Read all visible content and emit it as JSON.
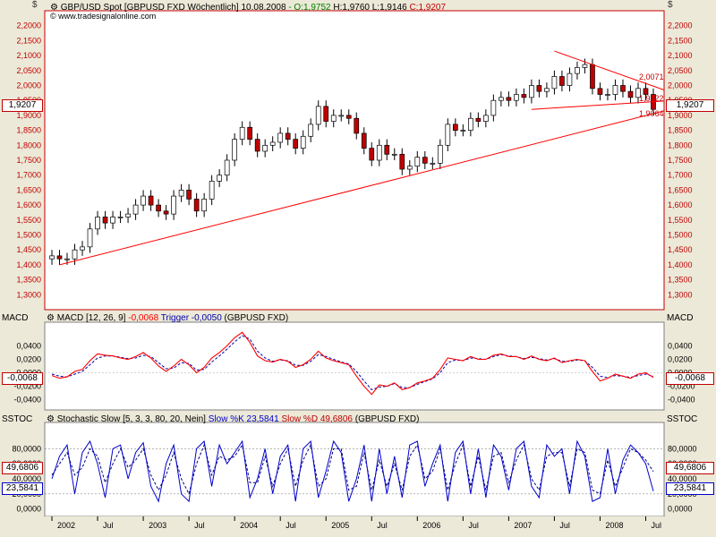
{
  "header": {
    "price_title": "GBP/USD Spot [GBPUSD FXD  Wöchentlich] 10.08.2008",
    "ohlc": {
      "open": "- O:1,9752",
      "high": "H:1,9760",
      "low": "L:1,9146",
      "close": "C:1,9207"
    },
    "watermark": "www.tradesignalonline.com",
    "dollar_left": "$",
    "dollar_right": "$"
  },
  "panes": {
    "macd": {
      "short_label": "MACD",
      "title_prefix": "MACD [12, 26, 9]",
      "value": "-0,0068",
      "trigger": "Trigger -0,0050",
      "symbol": "(GBPUSD FXD)",
      "last_box": "-0,0068"
    },
    "stoch": {
      "short_label": "SSTOC",
      "title_prefix": "Stochastic Slow [5, 3, 3, 80, 20, Nein]",
      "k": "Slow %K 23,5841",
      "d": "Slow %D 49,6806",
      "symbol": "(GBPUSD FXD)",
      "box_d": "49,6806",
      "box_k": "23,5841"
    }
  },
  "price_box": "1,9207",
  "colors": {
    "price_up": "#ffffff",
    "price_down": "#c00000",
    "macd_line": "#ff0000",
    "macd_signal": "#0000aa",
    "stoch_k": "#0000cc",
    "trendline": "#ff0000",
    "axis_red": "#c00000",
    "axis_green": "#008000"
  },
  "chart_data": [
    {
      "type": "candlestick",
      "title": "GBP/USD Spot [GBPUSD FXD Wöchentlich] 10.08.2008",
      "x_ticks": [
        "2002",
        "Jul",
        "2003",
        "Jul",
        "2004",
        "Jul",
        "2005",
        "Jul",
        "2006",
        "Jul",
        "2007",
        "Jul",
        "2008",
        "Jul"
      ],
      "x_range": [
        "2002-01",
        "2008-08"
      ],
      "ylim": [
        1.25,
        2.25
      ],
      "y_ticks": [
        "1,3000",
        "1,3500",
        "1,4000",
        "1,4500",
        "1,5000",
        "1,5500",
        "1,6000",
        "1,6500",
        "1,7000",
        "1,7500",
        "1,8000",
        "1,8500",
        "1,9000",
        "1,9500",
        "2,0000",
        "2,0500",
        "2,1000",
        "2,1500",
        "2,2000"
      ],
      "series": [
        {
          "x": [
            "2002-01",
            "2002-02",
            "2002-03",
            "2002-04",
            "2002-05",
            "2002-06",
            "2002-07",
            "2002-08",
            "2002-09",
            "2002-10",
            "2002-11",
            "2002-12",
            "2003-01",
            "2003-02",
            "2003-03",
            "2003-04",
            "2003-05",
            "2003-06",
            "2003-07",
            "2003-08",
            "2003-09",
            "2003-10",
            "2003-11",
            "2003-12",
            "2004-01",
            "2004-02",
            "2004-03",
            "2004-04",
            "2004-05",
            "2004-06",
            "2004-07",
            "2004-08",
            "2004-09",
            "2004-10",
            "2004-11",
            "2004-12",
            "2005-01",
            "2005-02",
            "2005-03",
            "2005-04",
            "2005-05",
            "2005-06",
            "2005-07",
            "2005-08",
            "2005-09",
            "2005-10",
            "2005-11",
            "2005-12",
            "2006-01",
            "2006-02",
            "2006-03",
            "2006-04",
            "2006-05",
            "2006-06",
            "2006-07",
            "2006-08",
            "2006-09",
            "2006-10",
            "2006-11",
            "2006-12",
            "2007-01",
            "2007-02",
            "2007-03",
            "2007-04",
            "2007-05",
            "2007-06",
            "2007-07",
            "2007-08",
            "2007-09",
            "2007-10",
            "2007-11",
            "2007-12",
            "2008-01",
            "2008-02",
            "2008-03",
            "2008-04",
            "2008-05",
            "2008-06",
            "2008-07",
            "2008-08"
          ],
          "close": [
            1.43,
            1.42,
            1.42,
            1.45,
            1.46,
            1.52,
            1.56,
            1.54,
            1.56,
            1.56,
            1.57,
            1.6,
            1.63,
            1.6,
            1.58,
            1.57,
            1.63,
            1.65,
            1.62,
            1.58,
            1.62,
            1.68,
            1.7,
            1.75,
            1.82,
            1.86,
            1.82,
            1.78,
            1.8,
            1.81,
            1.84,
            1.82,
            1.79,
            1.83,
            1.87,
            1.93,
            1.88,
            1.9,
            1.9,
            1.89,
            1.84,
            1.79,
            1.75,
            1.8,
            1.77,
            1.77,
            1.72,
            1.73,
            1.76,
            1.74,
            1.74,
            1.8,
            1.87,
            1.85,
            1.85,
            1.89,
            1.88,
            1.9,
            1.95,
            1.96,
            1.95,
            1.97,
            1.96,
            2.0,
            1.98,
            1.99,
            2.03,
            2.0,
            2.04,
            2.06,
            2.07,
            1.99,
            1.97,
            1.97,
            2.0,
            1.98,
            1.96,
            1.99,
            1.97,
            1.92
          ]
        }
      ],
      "annotations": [
        "2,0071",
        "1,9422",
        "1,9064"
      ]
    },
    {
      "type": "line",
      "title": "MACD [12, 26, 9] -0,0068 Trigger -0,0050 (GBPUSD FXD)",
      "ylim": [
        -0.055,
        0.075
      ],
      "y_ticks": [
        "-0,0400",
        "-0,0200",
        "0,0000",
        "0,0200",
        "0,0400"
      ],
      "series": [
        {
          "name": "MACD",
          "values": [
            -0.004,
            -0.008,
            -0.006,
            0.002,
            0.005,
            0.018,
            0.028,
            0.026,
            0.025,
            0.022,
            0.02,
            0.024,
            0.03,
            0.022,
            0.01,
            0.002,
            0.01,
            0.02,
            0.012,
            0.0,
            0.008,
            0.022,
            0.03,
            0.04,
            0.052,
            0.06,
            0.045,
            0.025,
            0.018,
            0.016,
            0.02,
            0.017,
            0.008,
            0.012,
            0.02,
            0.032,
            0.022,
            0.018,
            0.015,
            0.012,
            -0.005,
            -0.02,
            -0.032,
            -0.018,
            -0.02,
            -0.015,
            -0.025,
            -0.022,
            -0.015,
            -0.012,
            -0.008,
            0.005,
            0.022,
            0.02,
            0.018,
            0.024,
            0.02,
            0.02,
            0.026,
            0.028,
            0.024,
            0.024,
            0.02,
            0.025,
            0.02,
            0.018,
            0.022,
            0.015,
            0.018,
            0.02,
            0.018,
            0.002,
            -0.012,
            -0.008,
            -0.002,
            -0.005,
            -0.008,
            -0.002,
            0.0,
            -0.0068
          ]
        },
        {
          "name": "Trigger",
          "values": [
            -0.002,
            -0.005,
            -0.006,
            -0.002,
            0.002,
            0.012,
            0.022,
            0.025,
            0.025,
            0.023,
            0.021,
            0.022,
            0.026,
            0.024,
            0.015,
            0.006,
            0.007,
            0.015,
            0.014,
            0.004,
            0.005,
            0.016,
            0.025,
            0.035,
            0.046,
            0.055,
            0.05,
            0.032,
            0.022,
            0.017,
            0.019,
            0.018,
            0.011,
            0.011,
            0.017,
            0.027,
            0.024,
            0.02,
            0.016,
            0.013,
            0.002,
            -0.012,
            -0.025,
            -0.021,
            -0.02,
            -0.016,
            -0.022,
            -0.022,
            -0.017,
            -0.013,
            -0.009,
            0.0,
            0.015,
            0.019,
            0.018,
            0.022,
            0.021,
            0.02,
            0.024,
            0.027,
            0.025,
            0.024,
            0.021,
            0.023,
            0.021,
            0.019,
            0.021,
            0.017,
            0.017,
            0.019,
            0.018,
            0.008,
            -0.005,
            -0.007,
            -0.004,
            -0.005,
            -0.007,
            -0.004,
            -0.002,
            -0.005
          ]
        }
      ]
    },
    {
      "type": "line",
      "title": "Stochastic Slow [5, 3, 3, 80, 20, Nein] Slow %K 23,5841 Slow %D 49,6806 (GBPUSD FXD)",
      "ylim": [
        -10,
        115
      ],
      "y_ticks": [
        "0,0000",
        "20,0000",
        "40,0000",
        "60,0000",
        "80,0000"
      ],
      "series": [
        {
          "name": "Slow %K",
          "values": [
            40,
            70,
            85,
            20,
            75,
            90,
            60,
            15,
            80,
            85,
            40,
            75,
            88,
            30,
            10,
            60,
            85,
            20,
            10,
            80,
            90,
            30,
            85,
            60,
            75,
            90,
            15,
            40,
            80,
            20,
            70,
            85,
            10,
            80,
            90,
            15,
            50,
            90,
            75,
            10,
            40,
            85,
            10,
            80,
            20,
            70,
            15,
            85,
            90,
            30,
            60,
            85,
            10,
            75,
            90,
            20,
            80,
            15,
            85,
            70,
            25,
            80,
            90,
            30,
            15,
            85,
            70,
            80,
            20,
            90,
            70,
            10,
            15,
            80,
            20,
            65,
            85,
            75,
            60,
            23.58
          ]
        },
        {
          "name": "Slow %D",
          "values": [
            45,
            60,
            75,
            45,
            55,
            80,
            70,
            35,
            60,
            80,
            55,
            65,
            80,
            45,
            25,
            45,
            75,
            40,
            20,
            60,
            85,
            45,
            70,
            65,
            70,
            85,
            35,
            35,
            70,
            30,
            60,
            80,
            30,
            65,
            85,
            30,
            40,
            80,
            80,
            25,
            30,
            75,
            25,
            65,
            30,
            60,
            25,
            70,
            85,
            40,
            50,
            80,
            25,
            60,
            85,
            30,
            70,
            25,
            70,
            75,
            35,
            65,
            85,
            40,
            25,
            70,
            75,
            75,
            30,
            80,
            75,
            25,
            20,
            65,
            30,
            55,
            80,
            75,
            65,
            49.68
          ]
        }
      ]
    }
  ]
}
